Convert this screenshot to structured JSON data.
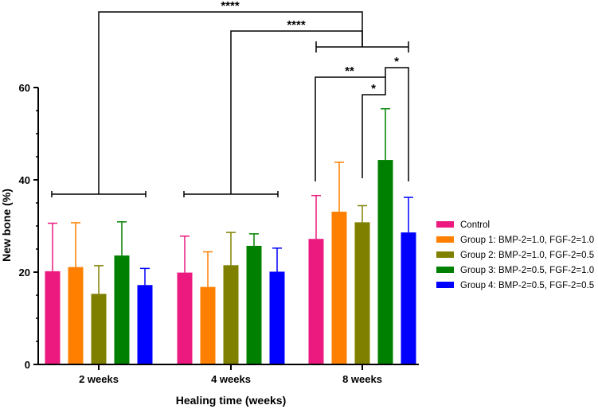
{
  "chart_data": {
    "type": "bar",
    "title": "",
    "xlabel": "Healing time (weeks)",
    "ylabel": "New bone (%)",
    "ylim": [
      0,
      60
    ],
    "yticks": [
      0,
      20,
      40,
      60
    ],
    "categories": [
      "2 weeks",
      "4 weeks",
      "8 weeks"
    ],
    "error_bars": "upper, one-sided",
    "series": [
      {
        "name": "Control",
        "color": "#EC1A7E",
        "values": [
          20.2,
          19.9,
          27.2
        ],
        "errors": [
          10.4,
          7.9,
          9.4
        ]
      },
      {
        "name": "Group 1: BMP-2=1.0, FGF-2=1.0",
        "color": "#FF8000",
        "values": [
          21.1,
          16.8,
          33.1
        ],
        "errors": [
          9.6,
          7.6,
          10.7
        ]
      },
      {
        "name": "Group 2: BMP-2=1.0, FGF-2=0.5",
        "color": "#808000",
        "values": [
          15.3,
          21.5,
          30.8
        ],
        "errors": [
          6.1,
          7.1,
          3.6
        ]
      },
      {
        "name": "Group 3: BMP-2=0.5, FGF-2=1.0",
        "color": "#008000",
        "values": [
          23.6,
          25.7,
          44.3
        ],
        "errors": [
          7.3,
          2.6,
          11.1
        ]
      },
      {
        "name": "Group 4: BMP-2=0.5, FGF-2=0.5",
        "color": "#0000FF",
        "values": [
          17.2,
          20.1,
          28.6
        ],
        "errors": [
          3.6,
          5.1,
          7.6
        ]
      }
    ],
    "annotations": [
      {
        "label": "****",
        "compares": "2 weeks (all groups) vs 8 weeks (all groups)"
      },
      {
        "label": "****",
        "compares": "4 weeks (all groups) vs 8 weeks (all groups)"
      },
      {
        "label": "**",
        "compares": "8 weeks: Control vs Group 3"
      },
      {
        "label": "*",
        "compares": "8 weeks: Group 2 vs Group 3"
      },
      {
        "label": "*",
        "compares": "8 weeks: Group 3 vs Group 4"
      }
    ]
  }
}
